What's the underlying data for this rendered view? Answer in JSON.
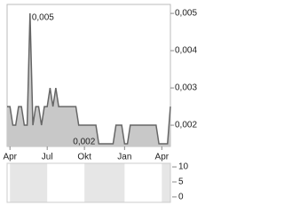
{
  "chart_data": [
    {
      "type": "line",
      "x": [
        0,
        1,
        2,
        3,
        4,
        5,
        6,
        7,
        8,
        9,
        10,
        11,
        12,
        13,
        14,
        15,
        16,
        17,
        18,
        19,
        20,
        21,
        22,
        23,
        24,
        25,
        26,
        27,
        28,
        29,
        30,
        31,
        32,
        33,
        34,
        35,
        36,
        37,
        38,
        39,
        40,
        41,
        42,
        43,
        44,
        45,
        46,
        47,
        48,
        49,
        50,
        51,
        52,
        53,
        54,
        55,
        56,
        57
      ],
      "values": [
        0.0025,
        0.0025,
        0.002,
        0.002,
        0.0025,
        0.0025,
        0.002,
        0.002,
        0.005,
        0.002,
        0.0025,
        0.0025,
        0.002,
        0.0025,
        0.0025,
        0.003,
        0.0025,
        0.003,
        0.0025,
        0.0025,
        0.0025,
        0.0025,
        0.0025,
        0.0025,
        0.0025,
        0.002,
        0.002,
        0.002,
        0.002,
        0.002,
        0.002,
        0.002,
        0.0015,
        0.0015,
        0.0015,
        0.0015,
        0.0015,
        0.0015,
        0.002,
        0.002,
        0.002,
        0.0015,
        0.0015,
        0.002,
        0.002,
        0.002,
        0.002,
        0.002,
        0.002,
        0.002,
        0.002,
        0.002,
        0.002,
        0.0015,
        0.0015,
        0.0015,
        0.0015,
        0.0025
      ],
      "color": "#666666",
      "fill": "#c8c8c8",
      "max_label": "0,005",
      "min_label": "0,002",
      "xlim": [
        0,
        57
      ],
      "xticks": [
        {
          "value": 1,
          "label": "Apr"
        },
        {
          "value": 14,
          "label": "Jul"
        },
        {
          "value": 27,
          "label": "Okt"
        },
        {
          "value": 41,
          "label": "Jan"
        },
        {
          "value": 54,
          "label": "Apr"
        }
      ],
      "ylim": [
        0.00143,
        0.00524
      ],
      "yticks": [
        {
          "value": 0.002,
          "label": "0,002"
        },
        {
          "value": 0.003,
          "label": "0,003"
        },
        {
          "value": 0.004,
          "label": "0,004"
        },
        {
          "value": 0.005,
          "label": "0,005"
        }
      ]
    },
    {
      "type": "bar",
      "ylim": [
        -1.8,
        11.2
      ],
      "yticks": [
        0,
        5,
        10
      ]
    }
  ]
}
